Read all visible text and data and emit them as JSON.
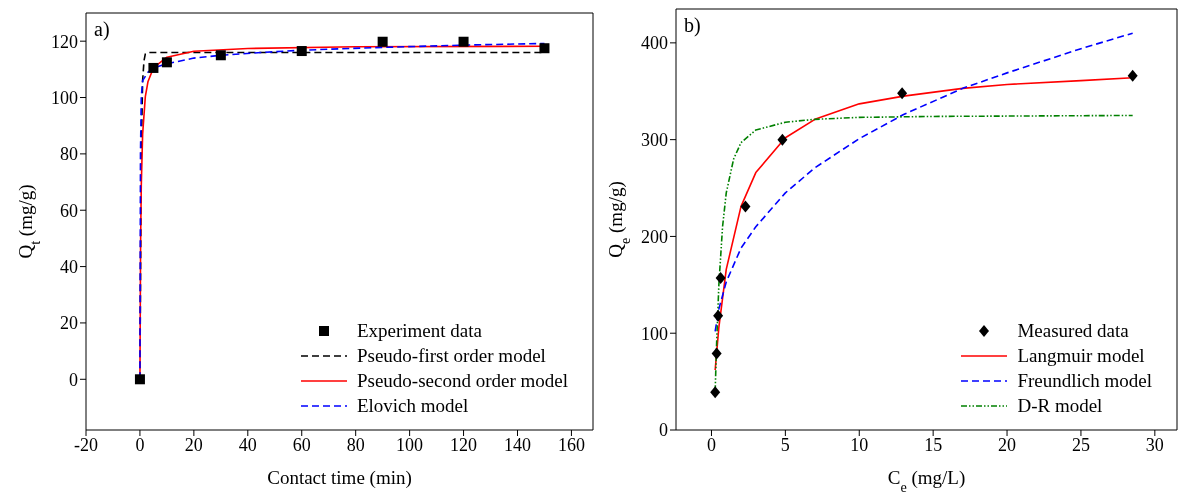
{
  "chart_data": [
    {
      "type": "line",
      "xlabel": "Contact time (min)",
      "ylabel": "Q$_{t}$ (mg/g)",
      "annotations": [
        "a)"
      ],
      "xlim": [
        -20,
        168
      ],
      "ylim": [
        -18,
        130
      ],
      "xticks": [
        -20,
        0,
        20,
        40,
        60,
        80,
        100,
        120,
        140,
        160
      ],
      "yticks": [
        0,
        20,
        40,
        60,
        80,
        100,
        120
      ],
      "grid": false,
      "legend": "bottom right",
      "series": [
        {
          "name": "Experiment data",
          "type": "scatter",
          "marker": "square",
          "color": "#000000",
          "x": [
            0,
            5,
            10,
            30,
            60,
            90,
            120,
            150
          ],
          "values": [
            0,
            110.5,
            112.5,
            115,
            116.5,
            119.8,
            119.8,
            117.5
          ]
        },
        {
          "name": "Pseudo-first order model",
          "line_style": "dashed",
          "color": "#000000",
          "x": [
            0,
            0.5,
            1,
            1.5,
            2,
            3,
            150
          ],
          "values": [
            0,
            80,
            106,
            113,
            115.5,
            116,
            116
          ]
        },
        {
          "name": "Pseudo-second order model",
          "line_style": "solid",
          "color": "#ff0000",
          "x": [
            0,
            0.25,
            0.5,
            1,
            2,
            3,
            5,
            10,
            20,
            40,
            80,
            150
          ],
          "values": [
            0,
            48.4,
            68.7,
            87,
            100.3,
            105.7,
            110.5,
            114.3,
            116.4,
            117.4,
            118,
            118.2
          ]
        },
        {
          "name": "Elovich model",
          "line_style": "dashed",
          "color": "#0000ff",
          "x": [
            0,
            0.2,
            0.5,
            1,
            3,
            5,
            10,
            20,
            30,
            45,
            60,
            90,
            120,
            150
          ],
          "values": [
            0,
            80,
            100,
            106,
            109,
            110.5,
            112,
            114,
            115,
            116,
            116.8,
            117.8,
            118.6,
            119.2
          ]
        }
      ]
    },
    {
      "type": "line",
      "xlabel": "C$_{e}$ (mg/L)",
      "ylabel": "Q$_{e}$ (mg/g)",
      "annotations": [
        "b)"
      ],
      "xlim": [
        -2.4,
        31.5
      ],
      "ylim": [
        0,
        435
      ],
      "xticks": [
        0,
        5,
        10,
        15,
        20,
        25,
        30
      ],
      "yticks": [
        0,
        100,
        200,
        300,
        400
      ],
      "grid": false,
      "legend": "bottom right",
      "series": [
        {
          "name": "Measured data",
          "type": "scatter",
          "marker": "diamond",
          "color": "#000000",
          "x": [
            0.25,
            0.35,
            0.45,
            0.62,
            2.3,
            4.8,
            12.9,
            28.5
          ],
          "values": [
            39,
            79,
            118,
            157,
            231,
            300,
            348,
            366
          ]
        },
        {
          "name": "Langmuir model",
          "line_style": "solid",
          "color": "#ff0000",
          "x": [
            0.25,
            0.5,
            1,
            2,
            3,
            5,
            7,
            10,
            13,
            17,
            20,
            25,
            28.5
          ],
          "values": [
            62,
            106,
            166,
            231,
            266,
            302,
            321,
            337,
            345,
            353,
            357,
            361,
            364
          ]
        },
        {
          "name": "Freundlich model",
          "line_style": "dashed",
          "color": "#0000ff",
          "x": [
            0.25,
            0.5,
            1,
            2,
            3,
            5,
            7,
            10,
            13,
            17,
            20,
            25,
            28.5
          ],
          "values": [
            102,
            125,
            153,
            188,
            210,
            245,
            271,
            301,
            326,
            353,
            369,
            394,
            410
          ]
        },
        {
          "name": "D-R model",
          "line_style": "dotted",
          "color": "#008000",
          "x": [
            0.25,
            0.35,
            0.5,
            0.75,
            1,
            1.5,
            2,
            3,
            5,
            7,
            10,
            15,
            28.5
          ],
          "values": [
            40,
            90,
            150,
            210,
            245,
            280,
            297,
            310,
            318,
            321,
            323,
            324,
            325
          ]
        }
      ]
    }
  ]
}
